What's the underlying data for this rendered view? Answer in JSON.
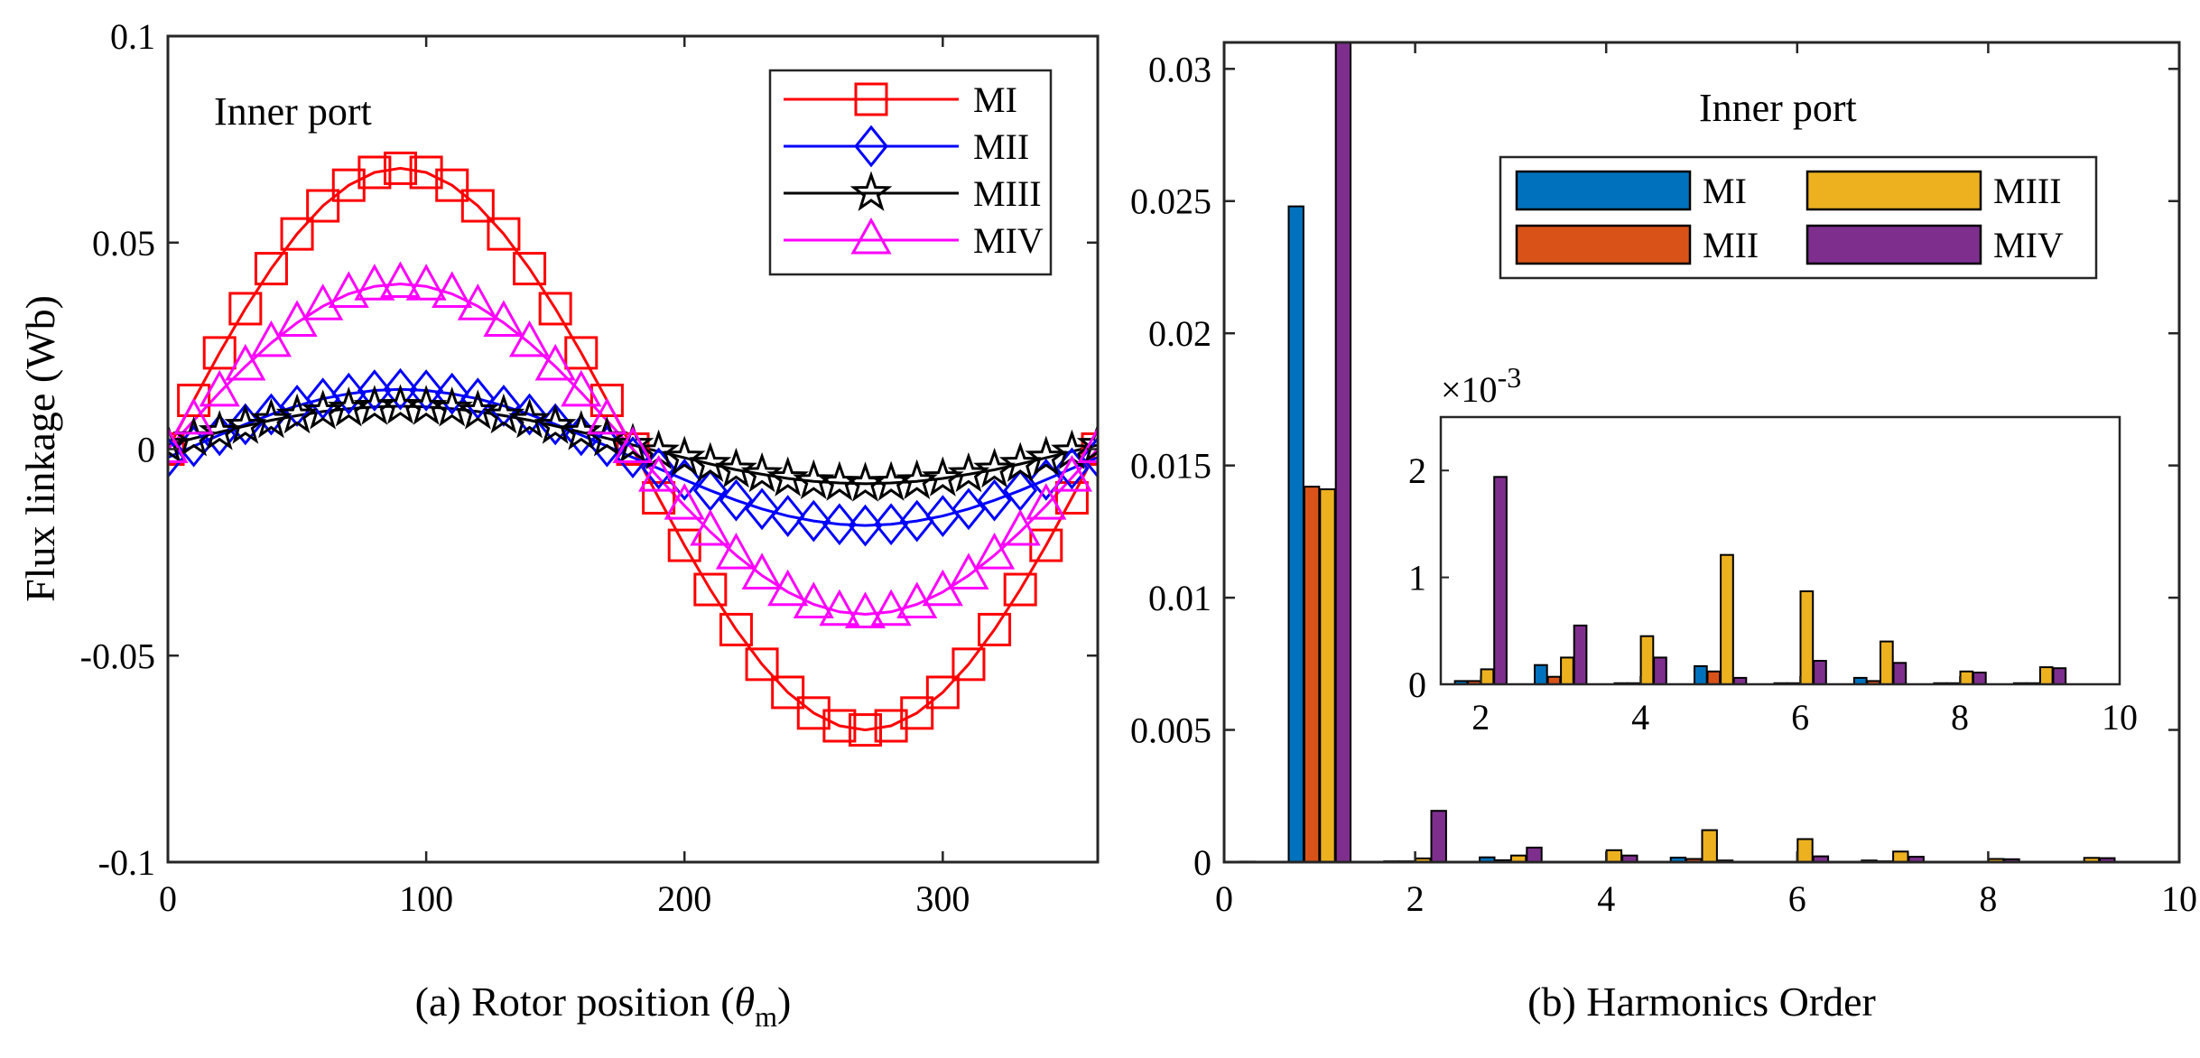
{
  "chart_data": [
    {
      "type": "line",
      "title": "",
      "annotation": "Inner port",
      "xlabel_prefix": "(a) Rotor position (",
      "xlabel_symbol": "θ",
      "xlabel_sub": "m",
      "xlabel_suffix": ")",
      "ylabel": "Flux linkage (Wb)",
      "xlim": [
        0,
        360
      ],
      "ylim": [
        -0.1,
        0.1
      ],
      "xticks": [
        0,
        100,
        200,
        300
      ],
      "xtick_labels": [
        "0",
        "100",
        "200",
        "300"
      ],
      "yticks": [
        -0.1,
        -0.05,
        0,
        0.05,
        0.1
      ],
      "ytick_labels": [
        "-0.1",
        "-0.05",
        "0",
        "0.05",
        "0.1"
      ],
      "legend_position": "top-right",
      "x": [
        0,
        10,
        20,
        30,
        40,
        50,
        60,
        70,
        80,
        90,
        100,
        110,
        120,
        130,
        140,
        150,
        160,
        170,
        180,
        190,
        200,
        210,
        220,
        230,
        240,
        250,
        260,
        270,
        280,
        290,
        300,
        310,
        320,
        330,
        340,
        350,
        360
      ],
      "series": [
        {
          "name": "MI",
          "color": "#ff0000",
          "marker": "square",
          "values": [
            0.0,
            0.0118,
            0.0233,
            0.034,
            0.0437,
            0.0521,
            0.0589,
            0.0639,
            0.067,
            0.068,
            0.067,
            0.0639,
            0.0589,
            0.0521,
            0.0437,
            0.034,
            0.0233,
            0.0118,
            0.0,
            -0.0118,
            -0.0233,
            -0.034,
            -0.0437,
            -0.0521,
            -0.0589,
            -0.0639,
            -0.067,
            -0.068,
            -0.067,
            -0.0639,
            -0.0589,
            -0.0521,
            -0.0437,
            -0.034,
            -0.0233,
            -0.0118,
            0.0
          ]
        },
        {
          "name": "MII",
          "color": "#0000ff",
          "marker": "diamond",
          "values": [
            -0.002,
            0.0007,
            0.0034,
            0.006,
            0.0084,
            0.0105,
            0.0122,
            0.0134,
            0.0142,
            0.0145,
            0.0142,
            0.0134,
            0.0122,
            0.0105,
            0.0084,
            0.006,
            0.0034,
            0.0007,
            -0.002,
            -0.0047,
            -0.0074,
            -0.01,
            -0.0124,
            -0.0145,
            -0.0162,
            -0.0174,
            -0.0182,
            -0.0185,
            -0.0182,
            -0.0174,
            -0.0162,
            -0.0145,
            -0.0124,
            -0.01,
            -0.0074,
            -0.0047,
            -0.002
          ]
        },
        {
          "name": "MIII",
          "color": "#000000",
          "marker": "star",
          "values": [
            0.001,
            0.0026,
            0.0041,
            0.0056,
            0.007,
            0.0081,
            0.0091,
            0.0098,
            0.0102,
            0.0104,
            0.0102,
            0.0098,
            0.0091,
            0.0081,
            0.007,
            0.0056,
            0.0041,
            0.0026,
            0.001,
            -0.0006,
            -0.0021,
            -0.0036,
            -0.005,
            -0.0061,
            -0.0071,
            -0.0078,
            -0.0082,
            -0.0084,
            -0.0082,
            -0.0078,
            -0.0071,
            -0.0061,
            -0.005,
            -0.0036,
            -0.0021,
            -0.0006,
            0.001
          ]
        },
        {
          "name": "MIV",
          "color": "#ff00ff",
          "marker": "triangle",
          "values": [
            0.0,
            0.0069,
            0.0137,
            0.02,
            0.0257,
            0.0306,
            0.0346,
            0.0376,
            0.0394,
            0.04,
            0.0394,
            0.0376,
            0.0346,
            0.0306,
            0.0257,
            0.02,
            0.0137,
            0.0069,
            0.0,
            -0.0069,
            -0.0137,
            -0.02,
            -0.0257,
            -0.0306,
            -0.0346,
            -0.0376,
            -0.0394,
            -0.04,
            -0.0394,
            -0.0376,
            -0.0346,
            -0.0306,
            -0.0257,
            -0.02,
            -0.0137,
            -0.0069,
            0.0
          ]
        }
      ]
    },
    {
      "type": "bar",
      "title": "",
      "annotation": "Inner port",
      "xlabel": "(b) Harmonics Order",
      "ylabel": "",
      "xlim": [
        0,
        10
      ],
      "ylim": [
        0,
        0.031
      ],
      "xticks": [
        0,
        2,
        4,
        6,
        8,
        10
      ],
      "xtick_labels": [
        "0",
        "2",
        "4",
        "6",
        "8",
        "10"
      ],
      "yticks": [
        0,
        0.005,
        0.01,
        0.015,
        0.02,
        0.025,
        0.03
      ],
      "ytick_labels": [
        "0",
        "0.005",
        "0.01",
        "0.015",
        "0.02",
        "0.025",
        "0.03"
      ],
      "legend_position": "top-right",
      "categories": [
        0,
        1,
        2,
        3,
        4,
        5,
        6,
        7,
        8,
        9,
        10
      ],
      "series": [
        {
          "name": "MI",
          "color": "#0072bd",
          "values": [
            0.0001,
            0.0248,
            3e-05,
            0.00018,
            1e-05,
            0.00017,
            1e-05,
            6e-05,
            1e-05,
            1e-05,
            0.0
          ]
        },
        {
          "name": "MII",
          "color": "#d95319",
          "values": [
            0.0,
            0.0142,
            3e-05,
            7e-05,
            1e-05,
            0.00012,
            1e-05,
            3e-05,
            1e-05,
            1e-05,
            0.0
          ]
        },
        {
          "name": "MIII",
          "color": "#edb120",
          "values": [
            0.0,
            0.0141,
            0.00014,
            0.00025,
            0.00045,
            0.00121,
            0.00087,
            0.0004,
            0.00012,
            0.00016,
            0.0
          ]
        },
        {
          "name": "MIV",
          "color": "#7e2f8e",
          "values": [
            2e-05,
            0.0314,
            0.00194,
            0.00055,
            0.00025,
            6e-05,
            0.00022,
            0.0002,
            0.00011,
            0.00015,
            0.0
          ]
        }
      ],
      "inset": {
        "scale_prefix": "×10",
        "scale_exp": "-3",
        "xlim": [
          1.5,
          10
        ],
        "ylim": [
          0,
          2.5
        ],
        "xticks": [
          2,
          4,
          6,
          8,
          10
        ],
        "xtick_labels": [
          "2",
          "4",
          "6",
          "8",
          "10"
        ],
        "yticks": [
          0,
          1,
          2
        ],
        "ytick_labels": [
          "0",
          "1",
          "2"
        ]
      }
    }
  ]
}
